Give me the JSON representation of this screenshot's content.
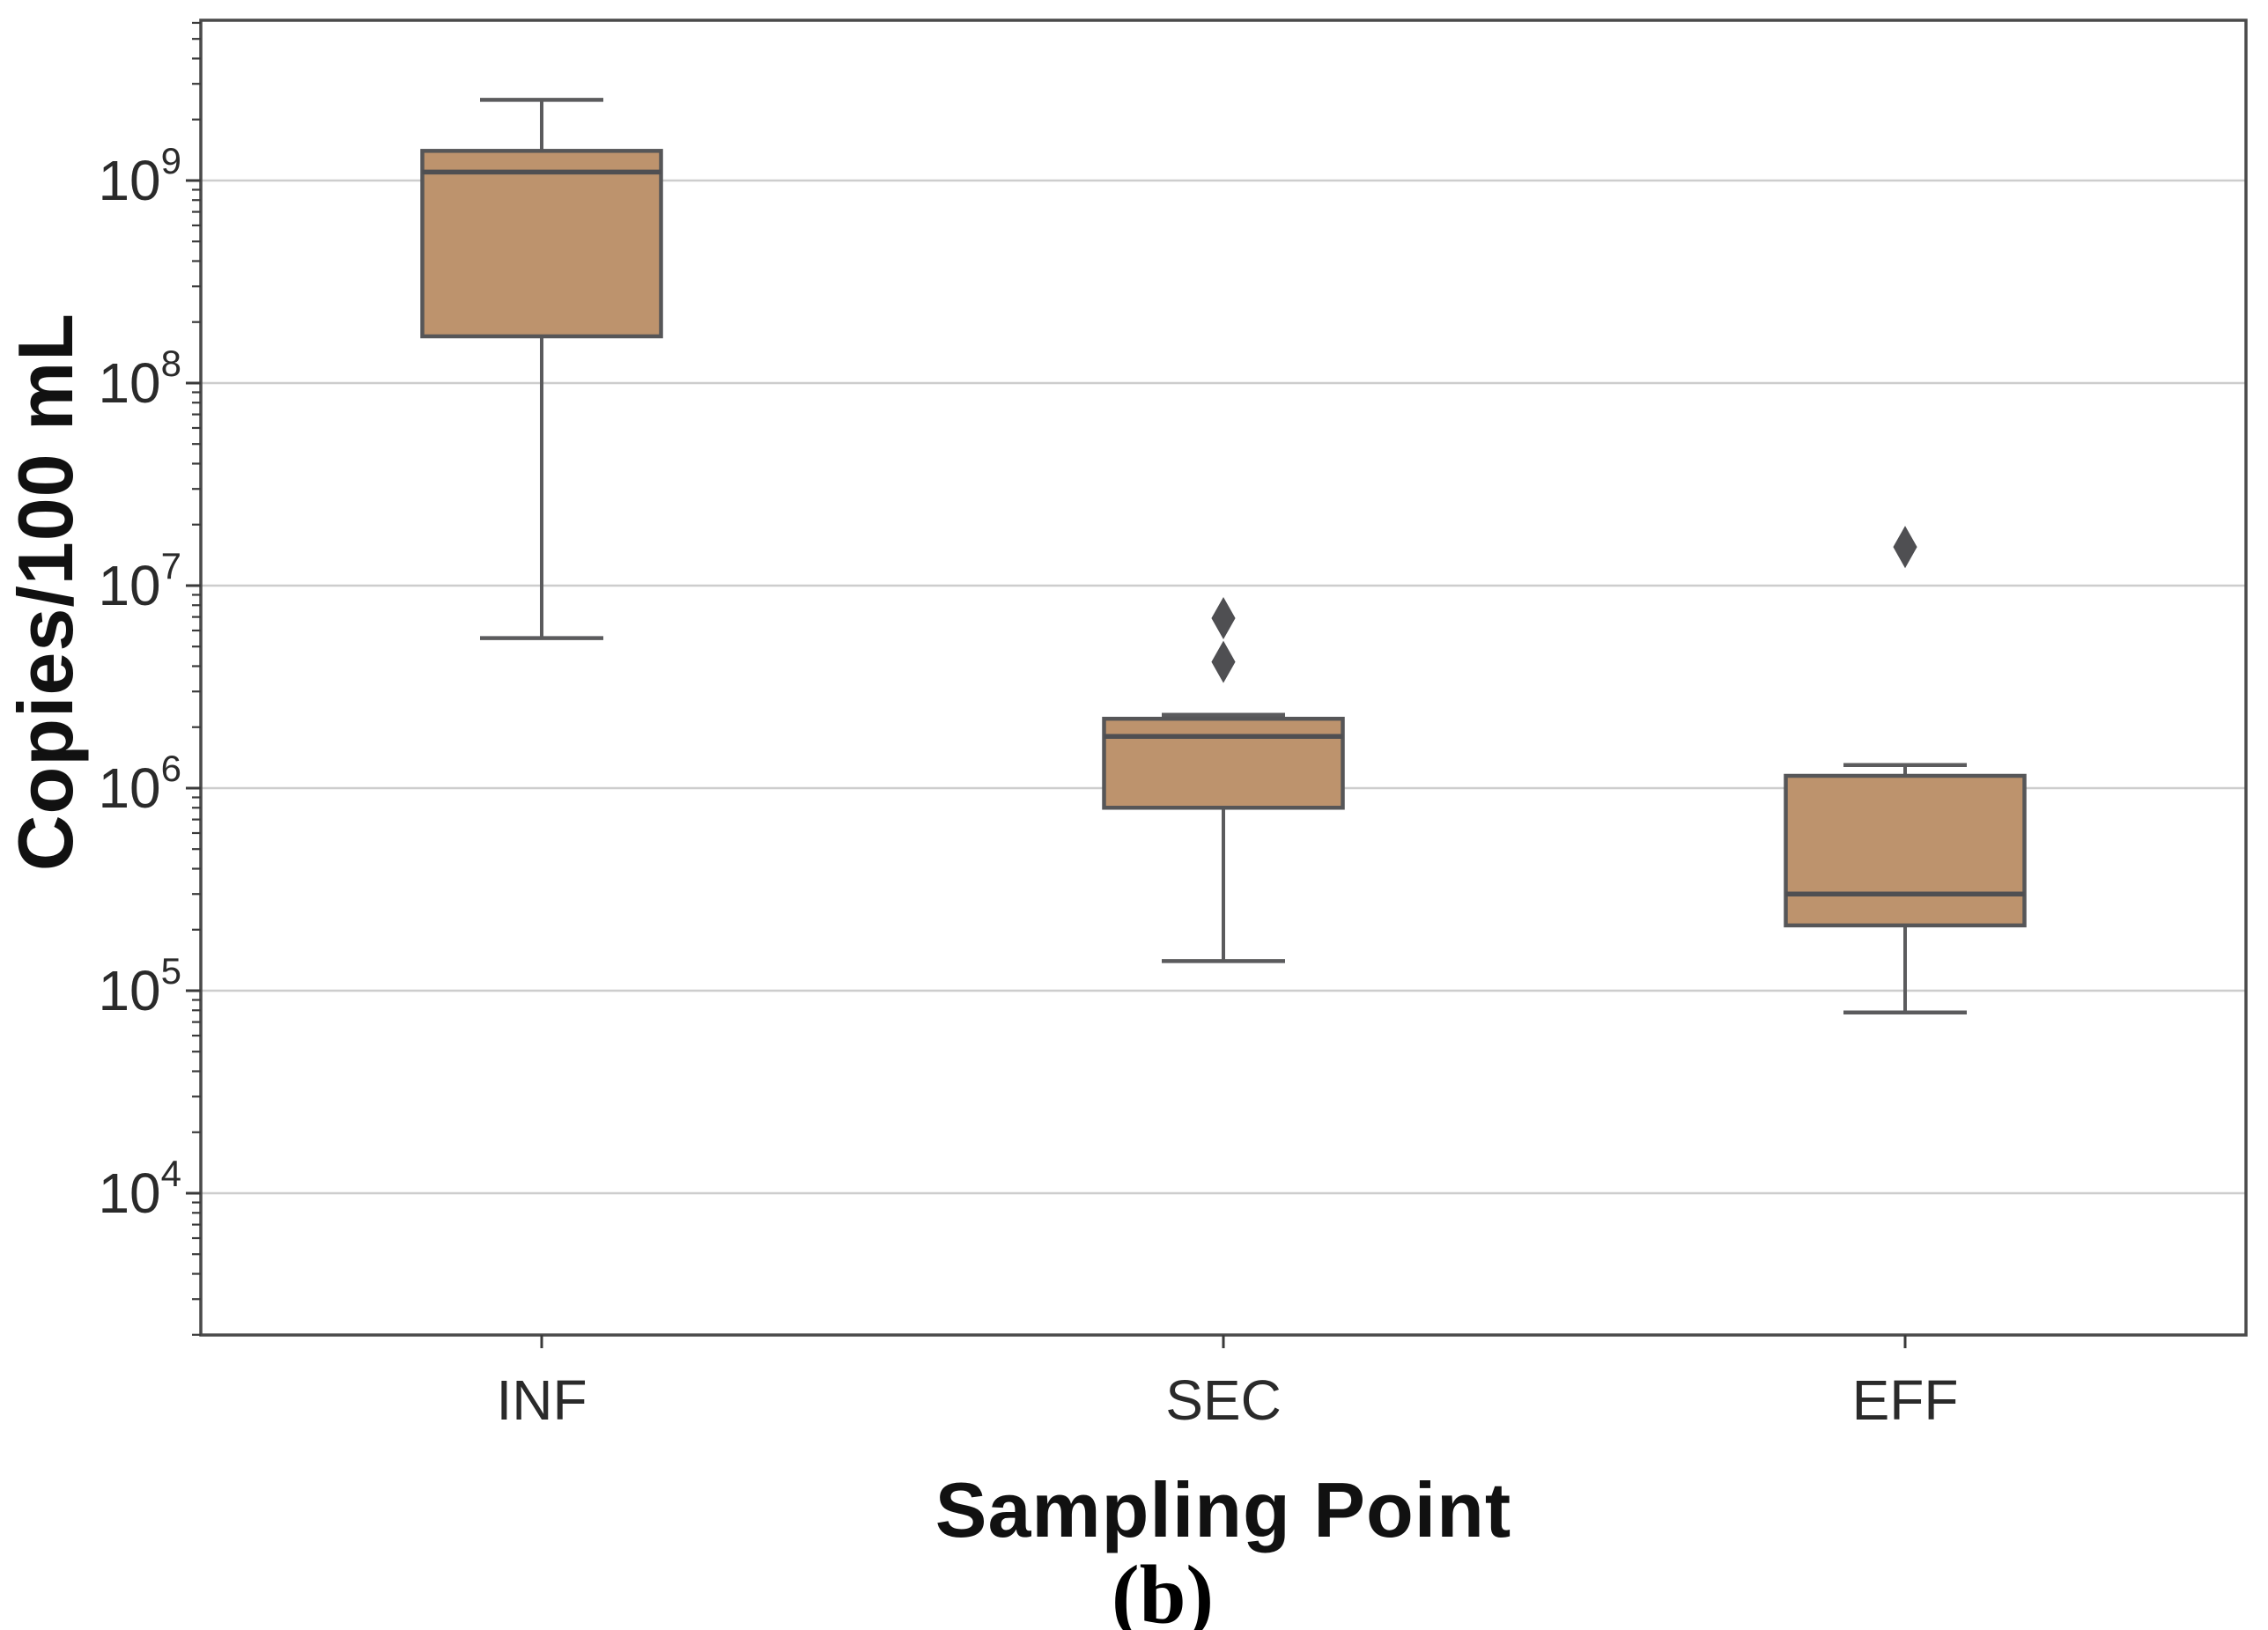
{
  "figure": {
    "background": "#ffffff",
    "caption": "(b)"
  },
  "chart_data": {
    "type": "box",
    "title": "",
    "xlabel": "Sampling Point",
    "ylabel": "Copies/100 mL",
    "categories": [
      "INF",
      "SEC",
      "EFF"
    ],
    "y_scale": "log10",
    "y_tick_exponents": [
      9,
      8,
      7,
      6,
      5,
      4
    ],
    "ylim_log10": [
      3.3,
      9.791
    ],
    "grid": "horizontal-major-decades",
    "legend": "none",
    "series": [
      {
        "category": "INF",
        "whisker_low": 5500000,
        "q1": 170000000,
        "median": 1100000000,
        "q3": 1400000000,
        "whisker_high": 2500000000,
        "outliers": []
      },
      {
        "category": "SEC",
        "whisker_low": 140000,
        "q1": 800000,
        "median": 1800000,
        "q3": 2200000,
        "whisker_high": 2300000,
        "outliers": [
          4200000,
          6900000
        ]
      },
      {
        "category": "EFF",
        "whisker_low": 78000,
        "q1": 210000,
        "median": 300000,
        "q3": 1150000,
        "whisker_high": 1300000,
        "outliers": [
          15500000
        ]
      }
    ],
    "colors": {
      "box_fill": "#BD936D",
      "box_edge": "#565658",
      "median": "#4F4F52",
      "whisker": "#5B5B5D",
      "outlier": "#4F4F52",
      "gridline": "#CDCDCD",
      "frame": "#4A4A4A",
      "tick": "#3A3A3A",
      "tick_label": "#2A2A2A",
      "axis_label": "#111111"
    }
  }
}
